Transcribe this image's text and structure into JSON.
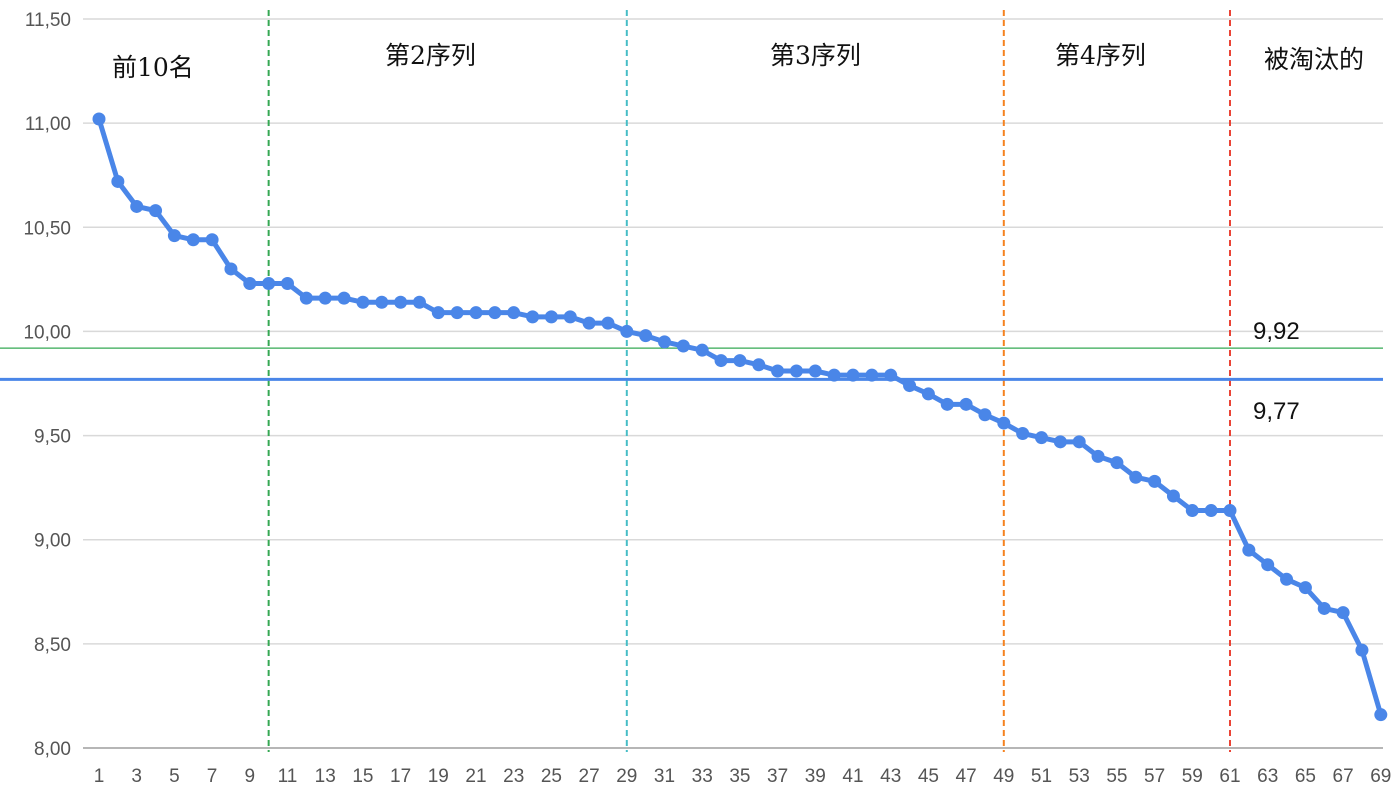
{
  "chart_data": {
    "type": "line",
    "x_ticks": [
      "1",
      "3",
      "5",
      "7",
      "9",
      "11",
      "13",
      "15",
      "17",
      "19",
      "21",
      "23",
      "25",
      "27",
      "29",
      "31",
      "33",
      "35",
      "37",
      "39",
      "41",
      "43",
      "45",
      "47",
      "49",
      "51",
      "53",
      "55",
      "57",
      "59",
      "61",
      "63",
      "65",
      "67",
      "69"
    ],
    "y_ticks": [
      "8,00",
      "8,50",
      "9,00",
      "9,50",
      "10,00",
      "10,50",
      "11,00",
      "11,50"
    ],
    "ylim": [
      8.0,
      11.5
    ],
    "xlim": [
      1,
      69
    ],
    "grid": true,
    "series": [
      {
        "color": "#4a86e8",
        "x": [
          1,
          2,
          3,
          4,
          5,
          6,
          7,
          8,
          9,
          10,
          11,
          12,
          13,
          14,
          15,
          16,
          17,
          18,
          19,
          20,
          21,
          22,
          23,
          24,
          25,
          26,
          27,
          28,
          29,
          30,
          31,
          32,
          33,
          34,
          35,
          36,
          37,
          38,
          39,
          40,
          41,
          42,
          43,
          44,
          45,
          46,
          47,
          48,
          49,
          50,
          51,
          52,
          53,
          54,
          55,
          56,
          57,
          58,
          59,
          60,
          61,
          62,
          63,
          64,
          65,
          66,
          67,
          68,
          69
        ],
        "values": [
          11.02,
          10.72,
          10.6,
          10.58,
          10.46,
          10.44,
          10.44,
          10.3,
          10.23,
          10.23,
          10.23,
          10.16,
          10.16,
          10.16,
          10.14,
          10.14,
          10.14,
          10.14,
          10.09,
          10.09,
          10.09,
          10.09,
          10.09,
          10.07,
          10.07,
          10.07,
          10.04,
          10.04,
          10.0,
          9.98,
          9.95,
          9.93,
          9.91,
          9.86,
          9.86,
          9.84,
          9.81,
          9.81,
          9.81,
          9.79,
          9.79,
          9.79,
          9.79,
          9.74,
          9.7,
          9.65,
          9.65,
          9.6,
          9.56,
          9.51,
          9.49,
          9.47,
          9.47,
          9.4,
          9.37,
          9.3,
          9.28,
          9.21,
          9.14,
          9.14,
          9.14,
          8.95,
          8.88,
          8.81,
          8.77,
          8.67,
          8.65,
          8.47,
          8.16
        ]
      }
    ],
    "reference_lines": [
      {
        "value": 9.92,
        "label": "9,92",
        "color": "#34a853"
      },
      {
        "value": 9.77,
        "label": "9,77",
        "color": "#4a86e8"
      }
    ],
    "dividers": [
      {
        "x": 10,
        "color": "#34a853"
      },
      {
        "x": 29,
        "color": "#46bdc6"
      },
      {
        "x": 49,
        "color": "#f5821f"
      },
      {
        "x": 61,
        "color": "#ea4335"
      }
    ],
    "segment_labels": [
      "前10名",
      "第2序列",
      "第3序列",
      "第4序列",
      "被淘汰的"
    ]
  }
}
